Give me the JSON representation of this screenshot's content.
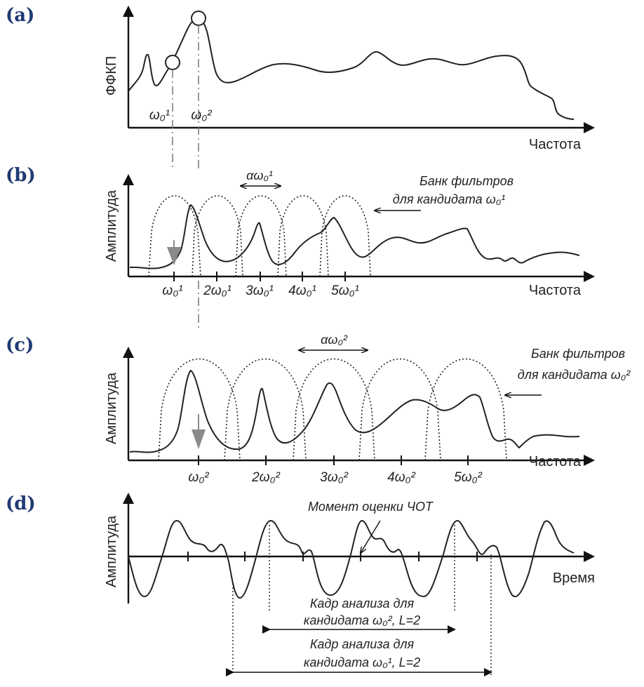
{
  "panels": {
    "a": {
      "label": "(a)",
      "ylabel": "ФФКП",
      "xlabel": "Частота",
      "candidate1": "ω₀¹",
      "candidate2": "ω₀²"
    },
    "b": {
      "label": "(b)",
      "ylabel": "Амплитуда",
      "xlabel": "Частота",
      "width_label": "αω₀¹",
      "bank_line1": "Банк фильтров",
      "bank_line2": "для кандидата ω₀¹",
      "ticks": [
        "ω₀¹",
        "2ω₀¹",
        "3ω₀¹",
        "4ω₀¹",
        "5ω₀¹"
      ]
    },
    "c": {
      "label": "(c)",
      "ylabel": "Амплитуда",
      "xlabel": "Частота",
      "width_label": "αω₀²",
      "bank_line1": "Банк фильтров",
      "bank_line2": "для кандидата ω₀²",
      "ticks": [
        "ω₀²",
        "2ω₀²",
        "3ω₀²",
        "4ω₀²",
        "5ω₀²"
      ]
    },
    "d": {
      "label": "(d)",
      "ylabel": "Амплитуда",
      "xlabel": "Время",
      "moment": "Момент оценки ЧОТ",
      "frame2_line1": "Кадр анализа для",
      "frame2_line2": "кандидата ω₀², L=2",
      "frame1_line1": "Кадр анализа для",
      "frame1_line2": "кандидата ω₀¹, L=2"
    }
  },
  "colors": {
    "panel_label": "#1f3b73",
    "line": "#222222",
    "arrow_gray": "#8a8a8a"
  }
}
